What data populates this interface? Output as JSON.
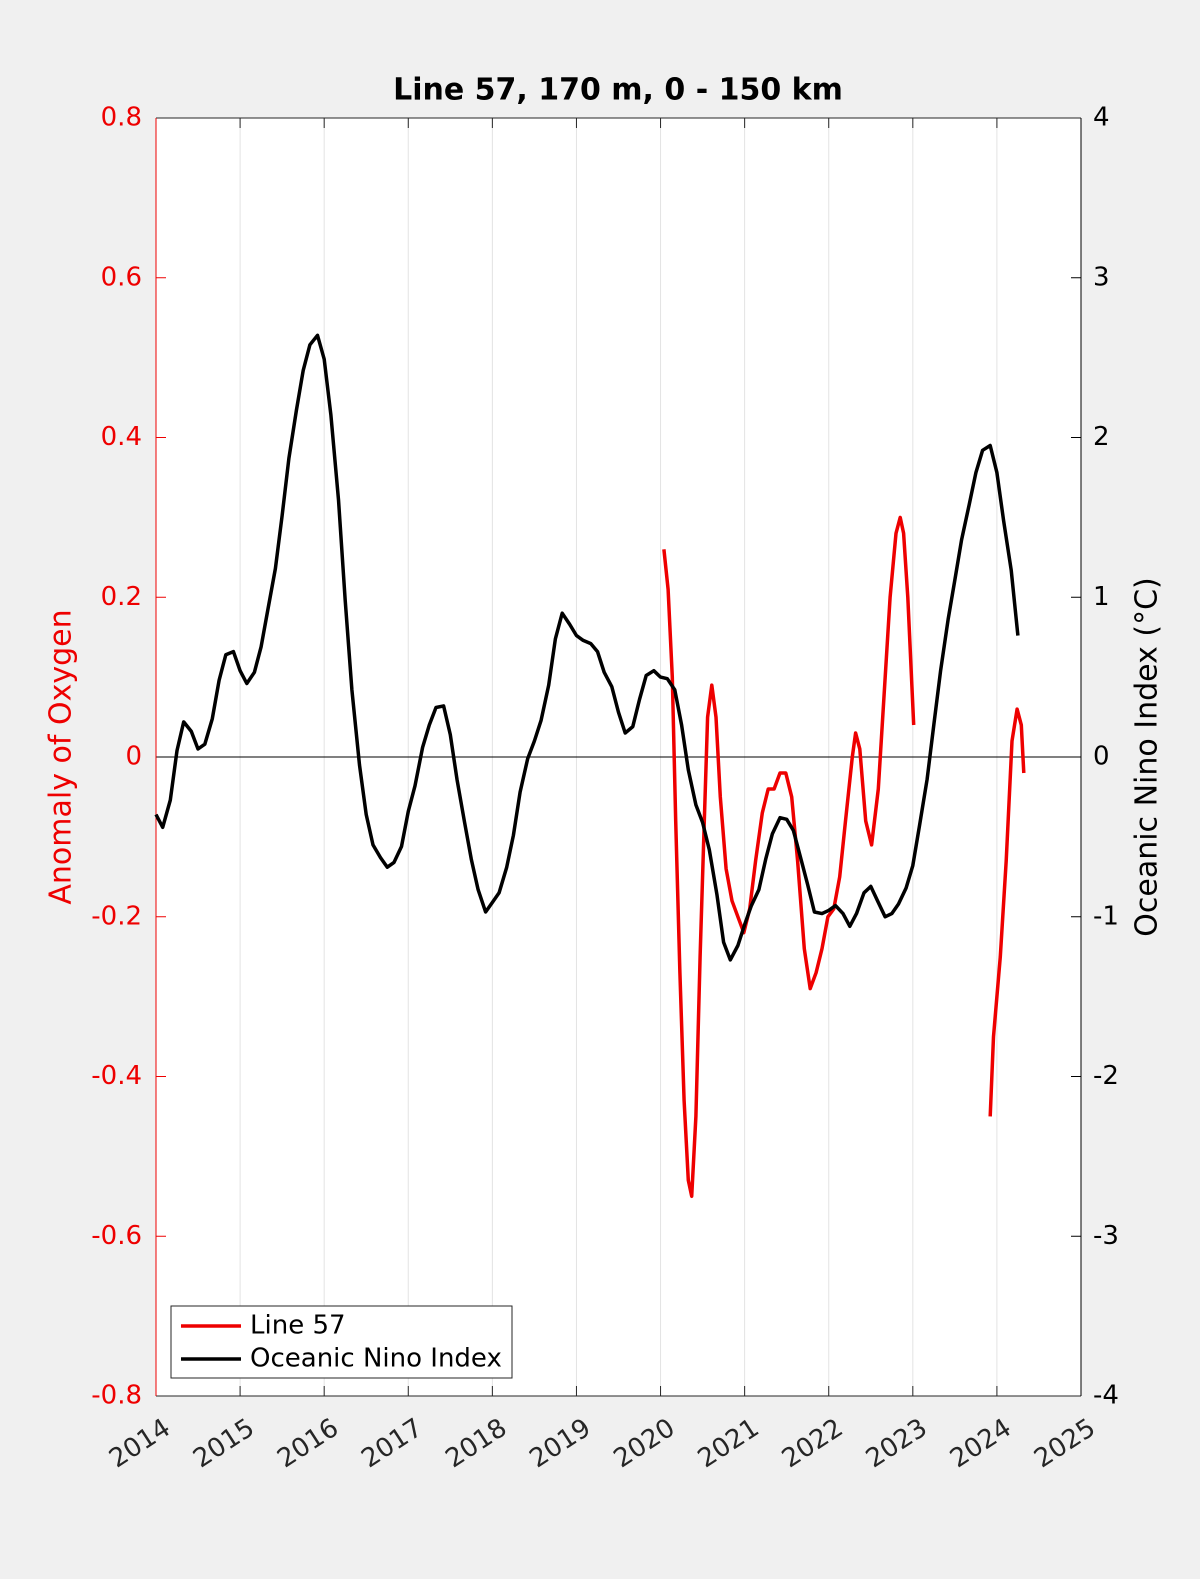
{
  "chart_data": {
    "type": "line",
    "title": "Line 57, 170 m, 0 - 150 km",
    "ylabel": "Anomaly of Oxygen",
    "y2label": "Oceanic Nino Index (°C)",
    "xlim": [
      2014,
      2025
    ],
    "xticks": [
      2014,
      2015,
      2016,
      2017,
      2018,
      2019,
      2020,
      2021,
      2022,
      2023,
      2024,
      2025
    ],
    "ylim": [
      -0.8,
      0.8
    ],
    "yticks": [
      -0.8,
      -0.6,
      -0.4,
      -0.2,
      0,
      0.2,
      0.4,
      0.6,
      0.8
    ],
    "y2lim": [
      -4,
      4
    ],
    "y2ticks": [
      -4,
      -3,
      -2,
      -1,
      0,
      1,
      2,
      3,
      4
    ],
    "xgrid": true,
    "zero_line": true,
    "legend": "lower left",
    "series": [
      {
        "name": "Line 57",
        "color": "#ee0000",
        "axis": "y",
        "x": [
          2020.04,
          2020.09,
          2020.14,
          2020.18,
          2020.23,
          2020.28,
          2020.33,
          2020.37,
          2020.42,
          2020.47,
          2020.52,
          2020.56,
          2020.61,
          2020.66,
          2020.71,
          2020.78,
          2020.85,
          2020.92,
          2020.99,
          2021.06,
          2021.13,
          2021.21,
          2021.28,
          2021.35,
          2021.42,
          2021.49,
          2021.56,
          2021.63,
          2021.71,
          2021.78,
          2021.85,
          2021.92,
          2021.99,
          2022.06,
          2022.13,
          2022.2,
          2022.28,
          2022.32,
          2022.37,
          2022.44,
          2022.51,
          2022.59,
          2022.66,
          2022.73,
          2022.8,
          2022.85,
          2022.89,
          2022.94,
          2023.01,
          2023.5,
          2023.92,
          2023.96,
          2024.04,
          2024.11,
          2024.18,
          2024.24,
          2024.29,
          2024.32
        ],
        "values": [
          0.26,
          0.21,
          0.1,
          -0.08,
          -0.27,
          -0.43,
          -0.53,
          -0.55,
          -0.45,
          -0.25,
          -0.08,
          0.05,
          0.09,
          0.05,
          -0.05,
          -0.14,
          -0.18,
          -0.2,
          -0.22,
          -0.19,
          -0.13,
          -0.07,
          -0.04,
          -0.04,
          -0.02,
          -0.02,
          -0.05,
          -0.13,
          -0.24,
          -0.29,
          -0.27,
          -0.24,
          -0.2,
          -0.19,
          -0.15,
          -0.08,
          0.0,
          0.03,
          0.01,
          -0.08,
          -0.11,
          -0.04,
          0.08,
          0.2,
          0.28,
          0.3,
          0.28,
          0.2,
          0.04,
          null,
          -0.45,
          -0.35,
          -0.25,
          -0.13,
          0.02,
          0.06,
          0.04,
          -0.02
        ]
      },
      {
        "name": "Oceanic Nino Index",
        "color": "#000000",
        "axis": "y2",
        "x": [
          2014.0,
          2014.08,
          2014.17,
          2014.25,
          2014.33,
          2014.42,
          2014.5,
          2014.58,
          2014.67,
          2014.75,
          2014.83,
          2014.92,
          2015.0,
          2015.08,
          2015.17,
          2015.25,
          2015.33,
          2015.42,
          2015.5,
          2015.58,
          2015.67,
          2015.75,
          2015.83,
          2015.92,
          2016.0,
          2016.08,
          2016.17,
          2016.25,
          2016.33,
          2016.42,
          2016.5,
          2016.58,
          2016.67,
          2016.75,
          2016.83,
          2016.92,
          2017.0,
          2017.08,
          2017.17,
          2017.25,
          2017.33,
          2017.42,
          2017.5,
          2017.58,
          2017.67,
          2017.75,
          2017.83,
          2017.92,
          2018.0,
          2018.08,
          2018.17,
          2018.25,
          2018.33,
          2018.42,
          2018.5,
          2018.58,
          2018.67,
          2018.75,
          2018.83,
          2018.92,
          2019.0,
          2019.08,
          2019.17,
          2019.25,
          2019.33,
          2019.42,
          2019.5,
          2019.58,
          2019.67,
          2019.75,
          2019.83,
          2019.92,
          2020.0,
          2020.08,
          2020.17,
          2020.25,
          2020.33,
          2020.42,
          2020.5,
          2020.58,
          2020.67,
          2020.75,
          2020.83,
          2020.92,
          2021.0,
          2021.08,
          2021.17,
          2021.25,
          2021.33,
          2021.42,
          2021.5,
          2021.58,
          2021.67,
          2021.75,
          2021.83,
          2021.92,
          2022.0,
          2022.08,
          2022.17,
          2022.25,
          2022.33,
          2022.42,
          2022.5,
          2022.58,
          2022.67,
          2022.75,
          2022.83,
          2022.92,
          2023.0,
          2023.08,
          2023.17,
          2023.25,
          2023.33,
          2023.42,
          2023.5,
          2023.58,
          2023.67,
          2023.75,
          2023.83,
          2023.92,
          2024.0,
          2024.08,
          2024.17,
          2024.25
        ],
        "values": [
          -0.36,
          -0.44,
          -0.27,
          0.04,
          0.22,
          0.16,
          0.05,
          0.08,
          0.24,
          0.48,
          0.64,
          0.66,
          0.54,
          0.46,
          0.53,
          0.69,
          0.92,
          1.18,
          1.51,
          1.87,
          2.17,
          2.42,
          2.58,
          2.64,
          2.49,
          2.14,
          1.61,
          0.98,
          0.42,
          -0.05,
          -0.36,
          -0.55,
          -0.63,
          -0.69,
          -0.66,
          -0.56,
          -0.34,
          -0.18,
          0.06,
          0.2,
          0.31,
          0.32,
          0.14,
          -0.14,
          -0.41,
          -0.64,
          -0.83,
          -0.97,
          -0.91,
          -0.85,
          -0.69,
          -0.49,
          -0.22,
          -0.01,
          0.1,
          0.23,
          0.45,
          0.74,
          0.9,
          0.83,
          0.76,
          0.73,
          0.71,
          0.66,
          0.53,
          0.44,
          0.28,
          0.15,
          0.19,
          0.36,
          0.51,
          0.54,
          0.5,
          0.49,
          0.42,
          0.2,
          -0.08,
          -0.3,
          -0.41,
          -0.58,
          -0.86,
          -1.16,
          -1.27,
          -1.18,
          -1.05,
          -0.93,
          -0.83,
          -0.64,
          -0.48,
          -0.38,
          -0.39,
          -0.46,
          -0.64,
          -0.8,
          -0.97,
          -0.98,
          -0.96,
          -0.93,
          -0.98,
          -1.06,
          -0.98,
          -0.85,
          -0.81,
          -0.9,
          -1.0,
          -0.98,
          -0.92,
          -0.82,
          -0.68,
          -0.43,
          -0.14,
          0.2,
          0.54,
          0.86,
          1.11,
          1.36,
          1.58,
          1.78,
          1.92,
          1.95,
          1.78,
          1.48,
          1.17,
          0.76
        ]
      }
    ]
  }
}
